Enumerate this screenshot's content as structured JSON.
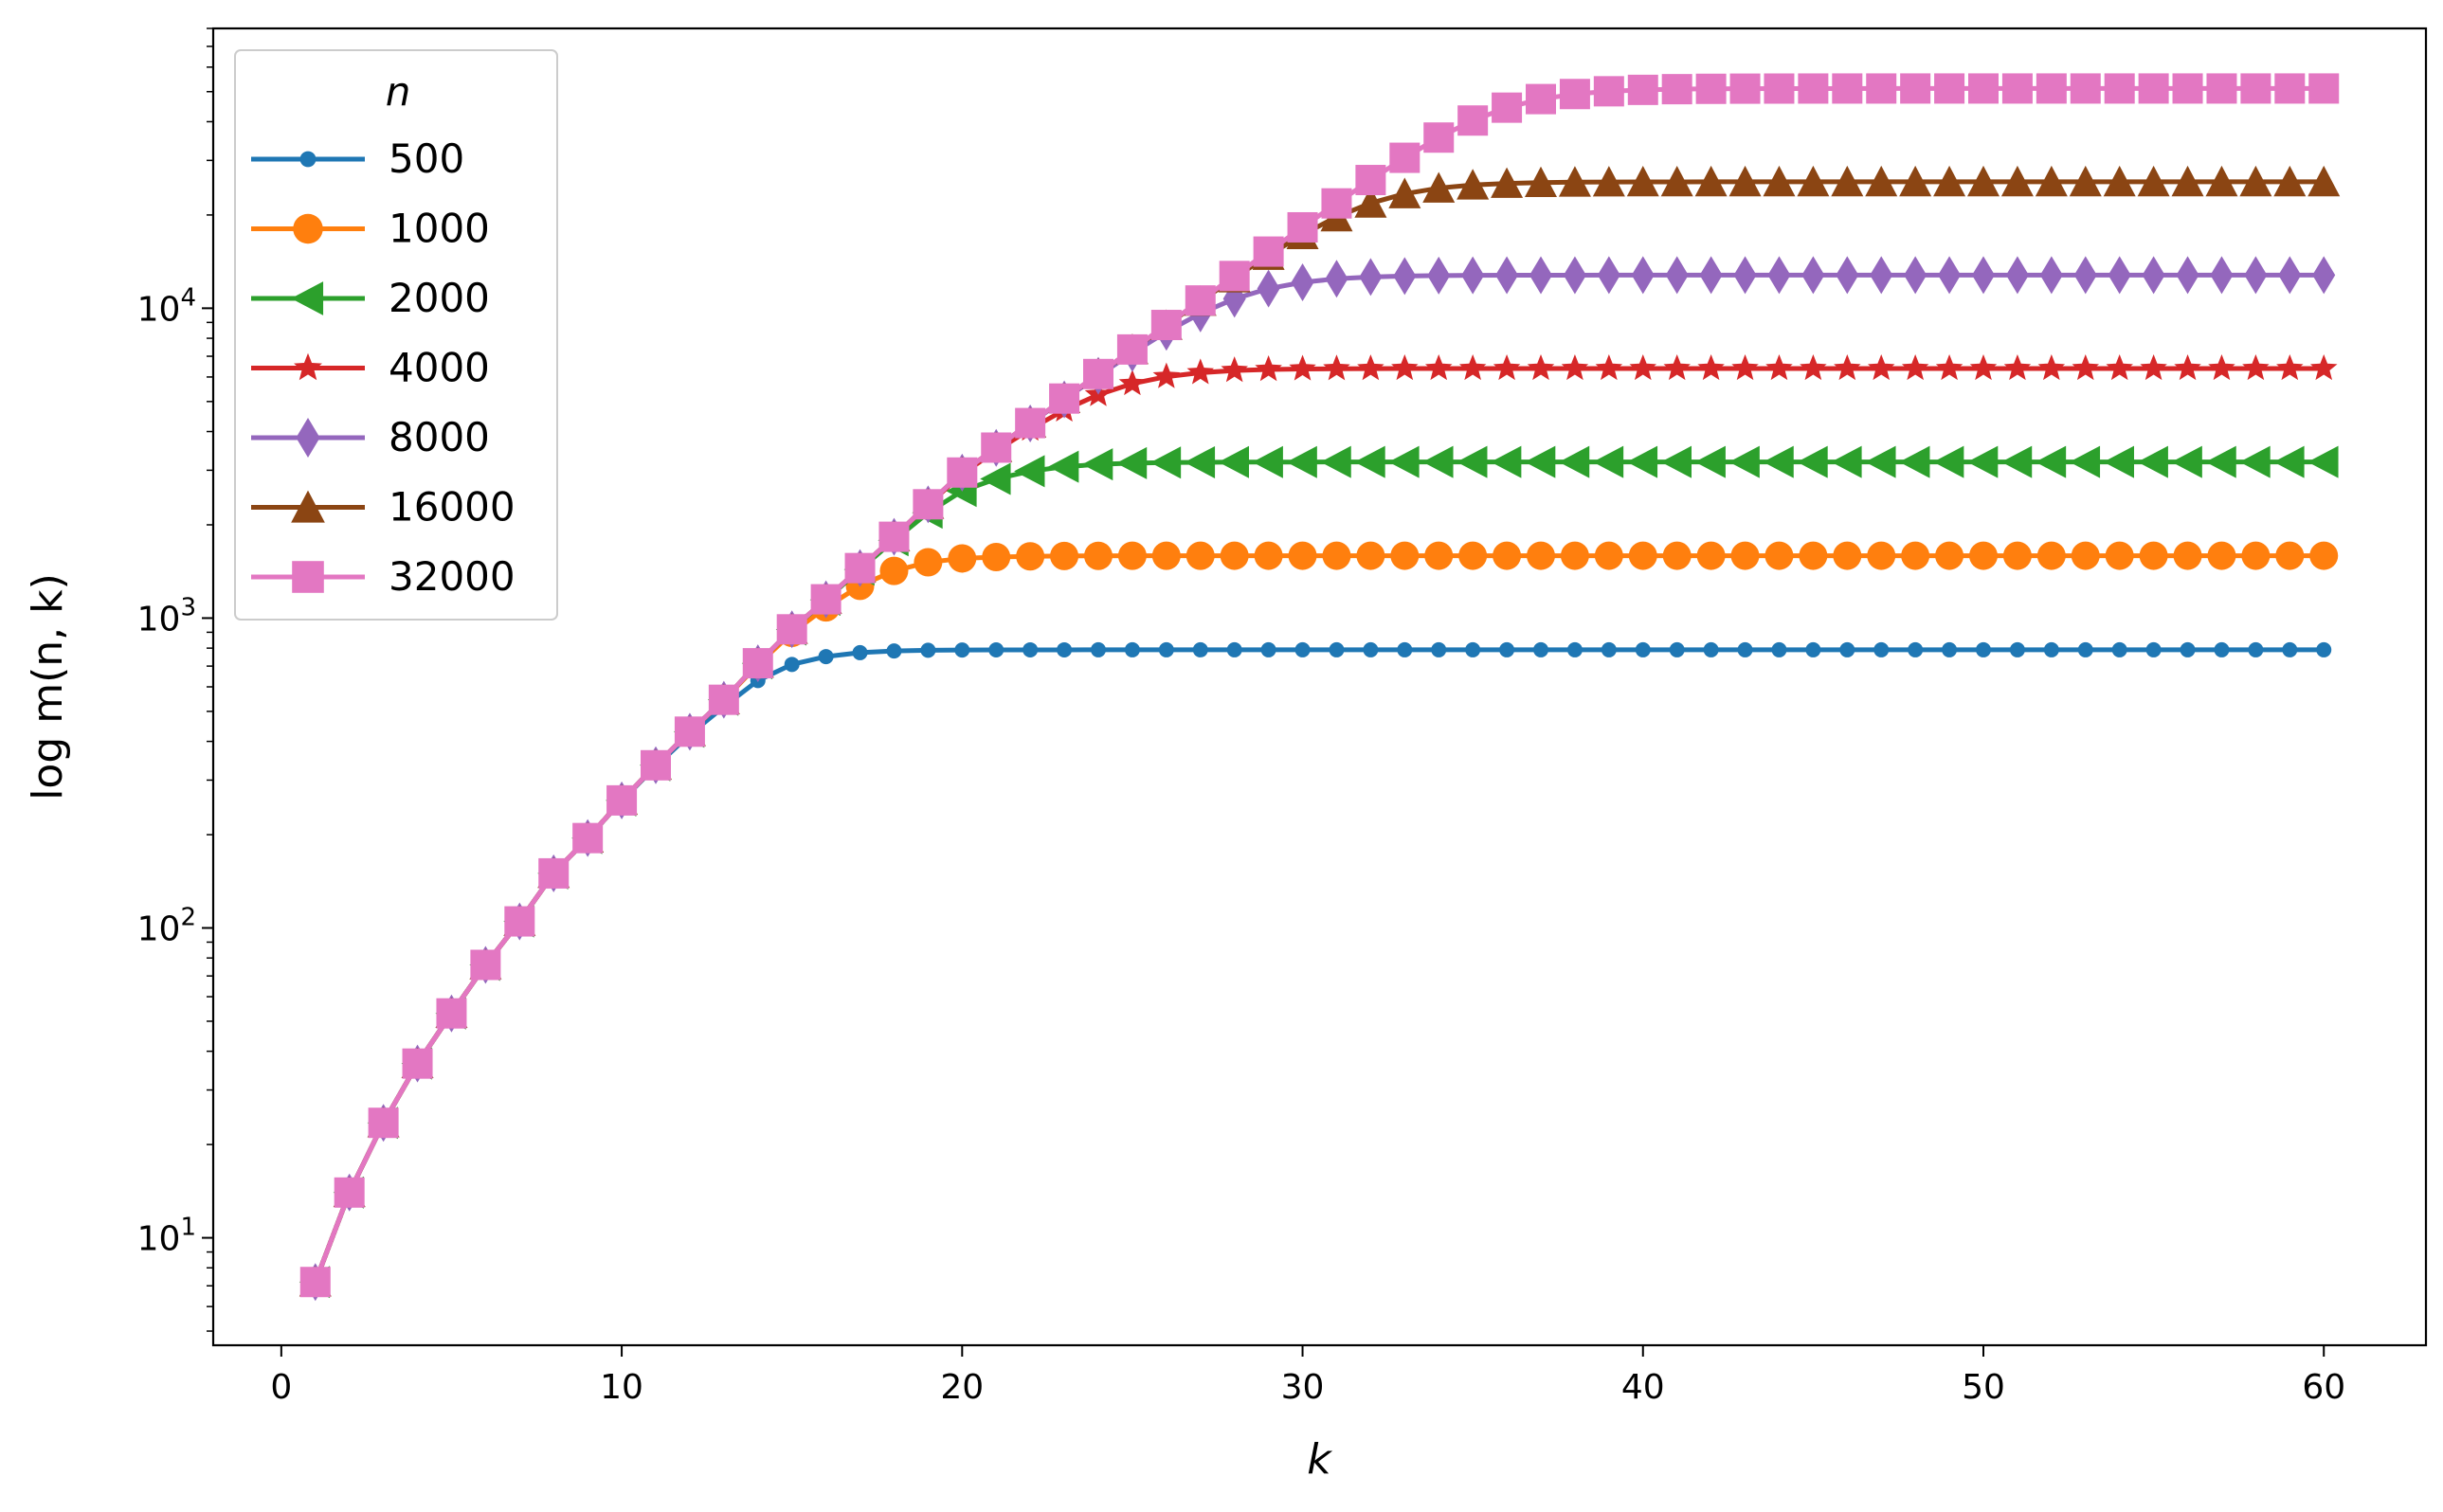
{
  "chart_data": {
    "type": "line",
    "xlabel": "k",
    "ylabel": "log m(n, k)",
    "xlim": [
      -2,
      63
    ],
    "ylim": [
      4.5,
      80000
    ],
    "yscale": "log",
    "x_ticks": [
      0,
      10,
      20,
      30,
      40,
      50,
      60
    ],
    "x_tick_labels": [
      "0",
      "10",
      "20",
      "30",
      "40",
      "50",
      "60"
    ],
    "y_tick_values": [
      10,
      100,
      1000,
      10000
    ],
    "y_tick_bases": [
      "10",
      "10",
      "10",
      "10"
    ],
    "y_tick_exponents": [
      "1",
      "2",
      "3",
      "4"
    ],
    "grid": false,
    "legend": {
      "title": "n",
      "placement": "upper-left"
    },
    "k_range": [
      1,
      60
    ],
    "common_start": [
      7.2,
      14,
      23.5,
      36.5,
      53,
      76,
      105,
      150,
      195,
      258,
      335,
      430,
      545,
      715,
      920,
      1150,
      1450,
      1830,
      2330,
      2950,
      3550
    ],
    "series": [
      {
        "name": "500",
        "color": "#1f77b4",
        "marker": "circle-small",
        "plateau": 790,
        "saturation_k": 15.5
      },
      {
        "name": "1000",
        "color": "#ff7f0e",
        "marker": "circle",
        "plateau": 1590,
        "saturation_k": 17.5
      },
      {
        "name": "2000",
        "color": "#2ca02c",
        "marker": "triangle-left",
        "plateau": 3190,
        "saturation_k": 19.5
      },
      {
        "name": "4000",
        "color": "#d62728",
        "marker": "star",
        "plateau": 6390,
        "saturation_k": 22
      },
      {
        "name": "8000",
        "color": "#9467bd",
        "marker": "diamond",
        "plateau": 12790,
        "saturation_k": 24.5
      },
      {
        "name": "16000",
        "color": "#8b4513",
        "marker": "triangle-up",
        "plateau": 25590,
        "saturation_k": 27
      },
      {
        "name": "32000",
        "color": "#e377c2",
        "marker": "square",
        "plateau": 51190,
        "saturation_k": 30
      }
    ]
  }
}
